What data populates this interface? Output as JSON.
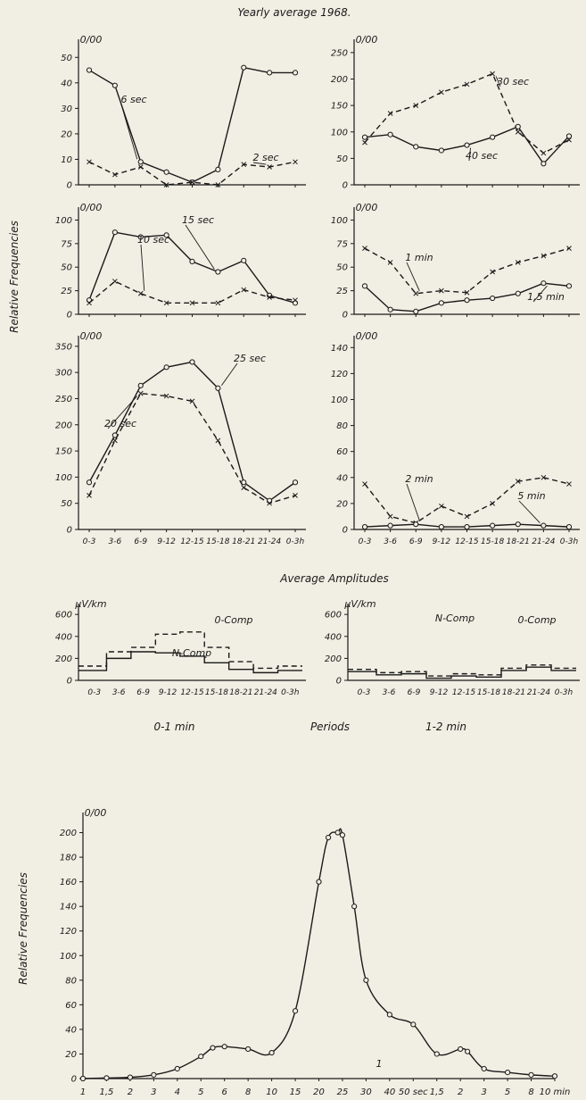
{
  "figure": {
    "top_title": "Yearly average 1968.",
    "side_label_top": "Relative Frequencies",
    "side_label_bottom": "Relative Frequencies",
    "amp_title": "Average Amplitudes",
    "periods_label": "Periods"
  },
  "colors": {
    "ink": "#1a1a1a",
    "paper": "#f1eee3"
  },
  "chart_data": [
    {
      "id": "p1",
      "type": "line",
      "unit_label": "0/00",
      "ylim": [
        0,
        55
      ],
      "yticks": [
        0,
        10,
        20,
        30,
        40,
        50
      ],
      "categories": [
        "0-3",
        "3-6",
        "6-9",
        "9-12",
        "12-15",
        "15-18",
        "18-21",
        "21-24",
        "0-3h"
      ],
      "show_xticklabels": false,
      "series": [
        {
          "name": "6 sec",
          "style": "solid",
          "marker": "circle",
          "values": [
            45,
            39,
            9,
            5,
            1,
            6,
            46,
            44,
            44
          ]
        },
        {
          "name": "2 sec",
          "style": "dashed",
          "marker": "cross",
          "values": [
            9,
            4,
            7,
            0,
            1,
            0,
            8,
            7,
            9
          ]
        }
      ]
    },
    {
      "id": "p2",
      "type": "line",
      "unit_label": "0/00",
      "ylim": [
        0,
        265
      ],
      "yticks": [
        0,
        50,
        100,
        150,
        200,
        250
      ],
      "categories": [
        "0-3",
        "3-6",
        "6-9",
        "9-12",
        "12-15",
        "15-18",
        "18-21",
        "21-24",
        "0-3h"
      ],
      "show_xticklabels": false,
      "series": [
        {
          "name": "30 sec",
          "style": "dashed",
          "marker": "cross",
          "values": [
            80,
            135,
            150,
            175,
            190,
            210,
            100,
            60,
            85
          ]
        },
        {
          "name": "40 sec",
          "style": "solid",
          "marker": "circle",
          "values": [
            90,
            95,
            72,
            65,
            75,
            90,
            110,
            40,
            92
          ]
        }
      ]
    },
    {
      "id": "p3",
      "type": "line",
      "unit_label": "0/00",
      "ylim": [
        0,
        108
      ],
      "yticks": [
        0,
        25,
        50,
        75,
        100
      ],
      "categories": [
        "0-3",
        "3-6",
        "6-9",
        "9-12",
        "12-15",
        "15-18",
        "18-21",
        "21-24",
        "0-3h"
      ],
      "show_xticklabels": false,
      "series": [
        {
          "name": "15 sec",
          "style": "solid",
          "marker": "circle",
          "values": [
            15,
            87,
            82,
            84,
            56,
            45,
            57,
            20,
            12
          ]
        },
        {
          "name": "10 sec",
          "style": "dashed",
          "marker": "cross",
          "values": [
            12,
            35,
            22,
            12,
            12,
            12,
            26,
            18,
            15
          ]
        }
      ]
    },
    {
      "id": "p4",
      "type": "line",
      "unit_label": "0/00",
      "ylim": [
        0,
        108
      ],
      "yticks": [
        0,
        25,
        50,
        75,
        100
      ],
      "categories": [
        "0-3",
        "3-6",
        "6-9",
        "9-12",
        "12-15",
        "15-18",
        "18-21",
        "21-24",
        "0-3h"
      ],
      "show_xticklabels": false,
      "series": [
        {
          "name": "1 min",
          "style": "dashed",
          "marker": "cross",
          "values": [
            70,
            55,
            22,
            25,
            23,
            45,
            55,
            62,
            70
          ]
        },
        {
          "name": "1,5 min",
          "style": "solid",
          "marker": "circle",
          "values": [
            30,
            5,
            3,
            12,
            15,
            17,
            22,
            33,
            30
          ]
        }
      ]
    },
    {
      "id": "p5",
      "type": "line",
      "unit_label": "0/00",
      "ylim": [
        0,
        360
      ],
      "yticks": [
        0,
        50,
        100,
        150,
        200,
        250,
        300,
        350
      ],
      "categories": [
        "0-3",
        "3-6",
        "6-9",
        "9-12",
        "12-15",
        "15-18",
        "18-21",
        "21-24",
        "0-3h"
      ],
      "show_xticklabels": true,
      "series": [
        {
          "name": "25 sec",
          "style": "solid",
          "marker": "circle",
          "values": [
            90,
            180,
            275,
            310,
            320,
            270,
            90,
            55,
            90
          ]
        },
        {
          "name": "20 sec",
          "style": "dashed",
          "marker": "cross",
          "values": [
            65,
            170,
            260,
            255,
            245,
            170,
            80,
            50,
            65
          ]
        }
      ]
    },
    {
      "id": "p6",
      "type": "line",
      "unit_label": "0/00",
      "ylim": [
        0,
        145
      ],
      "yticks": [
        0,
        20,
        40,
        60,
        80,
        100,
        120,
        140
      ],
      "categories": [
        "0-3",
        "3-6",
        "6-9",
        "9-12",
        "12-15",
        "15-18",
        "18-21",
        "21-24",
        "0-3h"
      ],
      "show_xticklabels": true,
      "series": [
        {
          "name": "2 min",
          "style": "dashed",
          "marker": "cross",
          "values": [
            35,
            10,
            5,
            18,
            10,
            20,
            37,
            40,
            35
          ]
        },
        {
          "name": "5 min",
          "style": "solid",
          "marker": "circle",
          "values": [
            2,
            3,
            4,
            2,
            2,
            3,
            4,
            3,
            2
          ]
        }
      ]
    },
    {
      "id": "a1",
      "type": "step",
      "unit_label": "μV/km",
      "ylim": [
        0,
        650
      ],
      "yticks": [
        0,
        200,
        400,
        600
      ],
      "categories": [
        "0-3",
        "3-6",
        "6-9",
        "9-12",
        "12-15",
        "15-18",
        "18-21",
        "21-24",
        "0-3h"
      ],
      "show_xticklabels": true,
      "caption": "0-1 min",
      "series": [
        {
          "name": "0-Comp",
          "style": "dashed",
          "values": [
            130,
            260,
            300,
            420,
            440,
            300,
            170,
            110,
            130
          ]
        },
        {
          "name": "N-Comp",
          "style": "solid",
          "values": [
            90,
            200,
            260,
            250,
            220,
            160,
            100,
            70,
            90
          ]
        }
      ]
    },
    {
      "id": "a2",
      "type": "step",
      "unit_label": "μV/km",
      "ylim": [
        0,
        650
      ],
      "yticks": [
        0,
        200,
        400,
        600
      ],
      "categories": [
        "0-3",
        "3-6",
        "6-9",
        "9-12",
        "12-15",
        "15-18",
        "18-21",
        "21-24",
        "0-3h"
      ],
      "show_xticklabels": true,
      "caption": "1-2 min",
      "series": [
        {
          "name": "0-Comp",
          "style": "dashed",
          "values": [
            100,
            70,
            80,
            40,
            60,
            50,
            110,
            140,
            110
          ]
        },
        {
          "name": "N-Comp",
          "style": "solid",
          "values": [
            80,
            50,
            60,
            20,
            40,
            30,
            90,
            120,
            90
          ]
        }
      ]
    },
    {
      "id": "b",
      "type": "line",
      "unit_label": "0/00",
      "ylim": [
        0,
        212
      ],
      "yticks": [
        0,
        20,
        40,
        60,
        80,
        100,
        120,
        140,
        160,
        180,
        200
      ],
      "xtick_labels": [
        "1",
        "1,5",
        "2",
        "3",
        "4",
        "5",
        "6",
        "8",
        "10",
        "15",
        "20",
        "25",
        "30",
        "40",
        "50 sec",
        "1,5",
        "2",
        "3",
        "5",
        "8",
        "10 min"
      ],
      "series": [
        {
          "name": "1",
          "style": "solid",
          "marker": "circle",
          "x_index": [
            0,
            1,
            2,
            3,
            4,
            5,
            5.5,
            6,
            7,
            8,
            9,
            10,
            10.4,
            10.8,
            11,
            11.5,
            12,
            13,
            14,
            15,
            16,
            16.3,
            17,
            18,
            19,
            20
          ],
          "values": [
            0,
            0.5,
            1,
            3,
            8,
            18,
            25,
            26,
            24,
            21,
            55,
            160,
            196,
            200,
            198,
            140,
            80,
            52,
            44,
            20,
            24,
            22,
            8,
            5,
            3,
            2
          ]
        }
      ]
    }
  ]
}
